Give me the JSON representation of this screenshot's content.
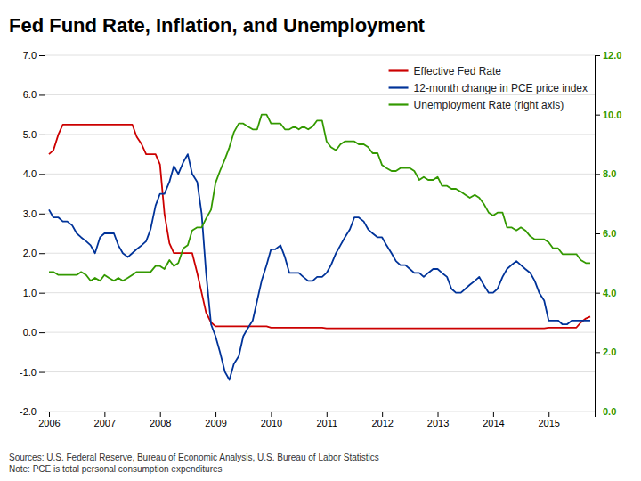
{
  "chart_data": {
    "type": "line",
    "title": "Fed Fund Rate, Inflation, and Unemployment",
    "annotations": [
      "Sources: U.S. Federal Reserve, Bureau of Economic Analysis, U.S. Bureau of Labor Statistics",
      "Note: PCE is total personal consumption expenditures"
    ],
    "x": [
      2006.0,
      2006.08,
      2006.17,
      2006.25,
      2006.33,
      2006.42,
      2006.5,
      2006.58,
      2006.67,
      2006.75,
      2006.83,
      2006.92,
      2007.0,
      2007.08,
      2007.17,
      2007.25,
      2007.33,
      2007.42,
      2007.5,
      2007.58,
      2007.67,
      2007.75,
      2007.83,
      2007.92,
      2008.0,
      2008.08,
      2008.17,
      2008.25,
      2008.33,
      2008.42,
      2008.5,
      2008.58,
      2008.67,
      2008.75,
      2008.83,
      2008.92,
      2009.0,
      2009.08,
      2009.17,
      2009.25,
      2009.33,
      2009.42,
      2009.5,
      2009.58,
      2009.67,
      2009.75,
      2009.83,
      2009.92,
      2010.0,
      2010.08,
      2010.17,
      2010.25,
      2010.33,
      2010.42,
      2010.5,
      2010.58,
      2010.67,
      2010.75,
      2010.83,
      2010.92,
      2011.0,
      2011.08,
      2011.17,
      2011.25,
      2011.33,
      2011.42,
      2011.5,
      2011.58,
      2011.67,
      2011.75,
      2011.83,
      2011.92,
      2012.0,
      2012.08,
      2012.17,
      2012.25,
      2012.33,
      2012.42,
      2012.5,
      2012.58,
      2012.67,
      2012.75,
      2012.83,
      2012.92,
      2013.0,
      2013.08,
      2013.17,
      2013.25,
      2013.33,
      2013.42,
      2013.5,
      2013.58,
      2013.67,
      2013.75,
      2013.83,
      2013.92,
      2014.0,
      2014.08,
      2014.17,
      2014.25,
      2014.33,
      2014.42,
      2014.5,
      2014.58,
      2014.67,
      2014.75,
      2014.83,
      2014.92,
      2015.0,
      2015.08,
      2015.17,
      2015.25,
      2015.33,
      2015.42,
      2015.5,
      2015.58,
      2015.67,
      2015.75
    ],
    "series": [
      {
        "name": "Effective Fed Rate",
        "color": "#cc0000",
        "values": [
          4.5,
          4.6,
          5.0,
          5.25,
          5.25,
          5.25,
          5.25,
          5.25,
          5.25,
          5.25,
          5.25,
          5.25,
          5.25,
          5.25,
          5.25,
          5.25,
          5.25,
          5.25,
          5.25,
          4.94,
          4.75,
          4.5,
          4.5,
          4.5,
          4.24,
          3.0,
          2.25,
          2.0,
          2.0,
          2.0,
          2.0,
          2.0,
          1.5,
          1.0,
          0.5,
          0.25,
          0.15,
          0.15,
          0.15,
          0.15,
          0.15,
          0.15,
          0.15,
          0.15,
          0.15,
          0.15,
          0.15,
          0.15,
          0.12,
          0.12,
          0.12,
          0.12,
          0.12,
          0.12,
          0.12,
          0.12,
          0.12,
          0.12,
          0.12,
          0.12,
          0.1,
          0.1,
          0.1,
          0.1,
          0.1,
          0.1,
          0.1,
          0.1,
          0.1,
          0.1,
          0.1,
          0.1,
          0.1,
          0.1,
          0.1,
          0.1,
          0.1,
          0.1,
          0.1,
          0.1,
          0.1,
          0.1,
          0.1,
          0.1,
          0.1,
          0.1,
          0.1,
          0.1,
          0.1,
          0.1,
          0.1,
          0.1,
          0.1,
          0.1,
          0.1,
          0.1,
          0.1,
          0.1,
          0.1,
          0.1,
          0.1,
          0.1,
          0.1,
          0.1,
          0.1,
          0.1,
          0.1,
          0.1,
          0.12,
          0.12,
          0.12,
          0.12,
          0.12,
          0.12,
          0.12,
          0.25,
          0.35,
          0.4
        ]
      },
      {
        "name": "12-month change in PCE price index",
        "color": "#003399",
        "values": [
          3.1,
          2.9,
          2.9,
          2.8,
          2.8,
          2.7,
          2.5,
          2.4,
          2.3,
          2.2,
          2.0,
          2.4,
          2.5,
          2.5,
          2.5,
          2.2,
          2.0,
          1.9,
          2.0,
          2.1,
          2.2,
          2.3,
          2.6,
          3.2,
          3.5,
          3.5,
          3.8,
          4.2,
          4.0,
          4.3,
          4.5,
          4.0,
          3.8,
          3.0,
          1.5,
          0.2,
          -0.1,
          -0.5,
          -1.0,
          -1.2,
          -0.8,
          -0.6,
          -0.1,
          0.1,
          0.3,
          0.8,
          1.3,
          1.7,
          2.1,
          2.1,
          2.2,
          1.9,
          1.5,
          1.5,
          1.5,
          1.4,
          1.3,
          1.3,
          1.4,
          1.4,
          1.5,
          1.7,
          2.0,
          2.2,
          2.4,
          2.6,
          2.9,
          2.9,
          2.8,
          2.6,
          2.5,
          2.4,
          2.4,
          2.2,
          2.0,
          1.8,
          1.7,
          1.7,
          1.6,
          1.5,
          1.5,
          1.4,
          1.5,
          1.6,
          1.6,
          1.5,
          1.4,
          1.1,
          1.0,
          1.0,
          1.1,
          1.2,
          1.3,
          1.4,
          1.2,
          1.0,
          1.0,
          1.1,
          1.4,
          1.6,
          1.7,
          1.8,
          1.7,
          1.6,
          1.5,
          1.3,
          1.0,
          0.8,
          0.3,
          0.3,
          0.3,
          0.2,
          0.2,
          0.3,
          0.3,
          0.3,
          0.3,
          0.3
        ]
      },
      {
        "name": "Unemployment Rate (right axis)",
        "color": "#339900",
        "axis": "y2",
        "values": [
          4.7,
          4.7,
          4.6,
          4.6,
          4.6,
          4.6,
          4.6,
          4.7,
          4.6,
          4.4,
          4.5,
          4.4,
          4.6,
          4.5,
          4.4,
          4.5,
          4.4,
          4.5,
          4.6,
          4.7,
          4.7,
          4.7,
          4.7,
          4.9,
          4.9,
          4.8,
          5.1,
          4.9,
          5.0,
          5.5,
          5.6,
          6.1,
          6.2,
          6.2,
          6.5,
          6.8,
          7.7,
          8.1,
          8.5,
          8.9,
          9.4,
          9.7,
          9.7,
          9.6,
          9.5,
          9.5,
          10.0,
          10.0,
          9.7,
          9.7,
          9.7,
          9.5,
          9.5,
          9.6,
          9.5,
          9.6,
          9.5,
          9.6,
          9.8,
          9.8,
          9.1,
          8.9,
          8.8,
          9.0,
          9.1,
          9.1,
          9.1,
          9.0,
          9.0,
          8.9,
          8.7,
          8.7,
          8.3,
          8.2,
          8.1,
          8.1,
          8.2,
          8.2,
          8.2,
          8.1,
          7.8,
          7.9,
          7.8,
          7.8,
          7.9,
          7.6,
          7.6,
          7.5,
          7.5,
          7.4,
          7.3,
          7.2,
          7.3,
          7.2,
          7.0,
          6.7,
          6.6,
          6.7,
          6.7,
          6.2,
          6.2,
          6.1,
          6.2,
          6.1,
          5.9,
          5.8,
          5.8,
          5.8,
          5.7,
          5.5,
          5.5,
          5.3,
          5.3,
          5.3,
          5.3,
          5.1,
          5.0,
          5.0
        ]
      }
    ],
    "xlim": [
      2005.92,
      2015.83
    ],
    "xticks": [
      2006,
      2007,
      2008,
      2009,
      2010,
      2011,
      2012,
      2013,
      2014,
      2015
    ],
    "ylim": [
      -2.0,
      7.0
    ],
    "yticks": [
      {
        "value": -2.0,
        "label": "-2.0"
      },
      {
        "value": -1.0,
        "label": "-1.0"
      },
      {
        "value": 0.0,
        "label": "0.0"
      },
      {
        "value": 1.0,
        "label": "1.0"
      },
      {
        "value": 2.0,
        "label": "2.0"
      },
      {
        "value": 3.0,
        "label": "3.0"
      },
      {
        "value": 4.0,
        "label": "4.0"
      },
      {
        "value": 5.0,
        "label": "5.0"
      },
      {
        "value": 6.0,
        "label": "6.0"
      },
      {
        "value": 7.0,
        "label": "7.0"
      }
    ],
    "y2lim": [
      0.0,
      12.0
    ],
    "y2ticks": [
      {
        "value": 0.0,
        "label": "0.0"
      },
      {
        "value": 2.0,
        "label": "2.0"
      },
      {
        "value": 4.0,
        "label": "4.0"
      },
      {
        "value": 6.0,
        "label": "6.0"
      },
      {
        "value": 8.0,
        "label": "8.0"
      },
      {
        "value": 10.0,
        "label": "10.0"
      },
      {
        "value": 12.0,
        "label": "12.0"
      }
    ],
    "grid": true,
    "legend": "upper right"
  }
}
